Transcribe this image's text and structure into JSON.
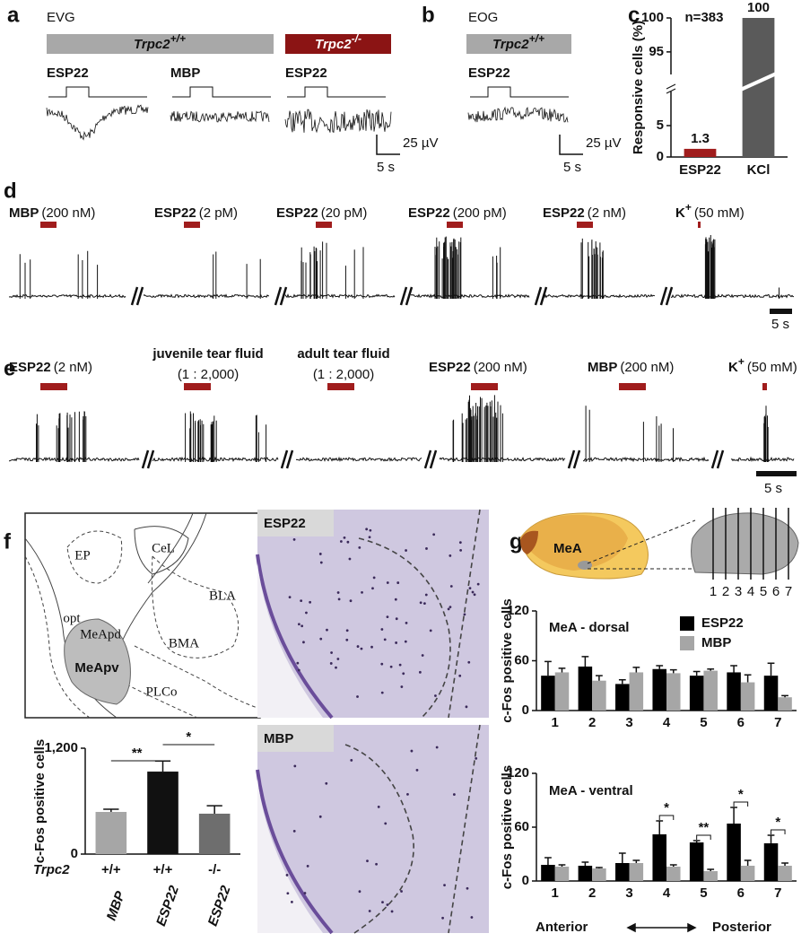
{
  "a": {
    "letter": "a",
    "method": "EVG",
    "groups": [
      {
        "gene": "Trpc2",
        "genotype": "+/+"
      },
      {
        "gene": "Trpc2",
        "genotype": "-/-"
      }
    ],
    "stimuli": [
      "ESP22",
      "MBP",
      "ESP22"
    ],
    "scale_y": "25 µV",
    "scale_x": "5 s"
  },
  "b": {
    "letter": "b",
    "method": "EOG",
    "groups": [
      {
        "gene": "Trpc2",
        "genotype": "+/+"
      }
    ],
    "stimuli": [
      "ESP22"
    ],
    "scale_y": "25 µV",
    "scale_x": "5 s"
  },
  "c": {
    "letter": "c"
  },
  "d": {
    "letter": "d",
    "stimuli": [
      {
        "name": "MBP",
        "conc": "(200 nM)"
      },
      {
        "name": "ESP22",
        "conc": "(2 pM)"
      },
      {
        "name": "ESP22",
        "conc": "(20 pM)"
      },
      {
        "name": "ESP22",
        "conc": "(200 pM)"
      },
      {
        "name": "ESP22",
        "conc": "(2 nM)"
      },
      {
        "name": "K",
        "sup": "+",
        "conc": "(50 mM)"
      }
    ],
    "scale_x": "5 s"
  },
  "e": {
    "letter": "e",
    "stimuli": [
      {
        "name": "ESP22",
        "conc": "(2 nM)"
      },
      {
        "name": "juvenile tear fluid",
        "conc": "(1 : 2,000)"
      },
      {
        "name": "adult tear fluid",
        "conc": "(1 : 2,000)"
      },
      {
        "name": "ESP22",
        "conc": "(200 nM)"
      },
      {
        "name": "MBP",
        "conc": "(200 nM)"
      },
      {
        "name": "K",
        "sup": "+",
        "conc": "(50 mM)"
      }
    ],
    "scale_x": "5 s"
  },
  "f": {
    "letter": "f",
    "atlas_labels": [
      "EP",
      "CeL",
      "BLA",
      "opt",
      "MeApd",
      "BMA",
      "MeApv",
      "PLCo"
    ],
    "images": [
      "ESP22",
      "MBP"
    ]
  },
  "g": {
    "letter": "g",
    "region": "MeA",
    "slices": [
      "1",
      "2",
      "3",
      "4",
      "5",
      "6",
      "7"
    ],
    "x_start": "Anterior",
    "x_end": "Posterior"
  },
  "chart_data": [
    {
      "type": "bar",
      "title": "n=383",
      "ylabel": "Responsive cells (%)",
      "categories": [
        "ESP22",
        "KCl"
      ],
      "values": [
        1.3,
        100
      ],
      "colors": [
        "#a01d1d",
        "#5a5a5a"
      ],
      "ylim": [
        0,
        100
      ],
      "axis_break": [
        9,
        93
      ],
      "yticks": [
        0,
        5,
        95,
        100
      ]
    },
    {
      "type": "bar",
      "ylabel": "c-Fos positive cells",
      "categories": [
        "MBP",
        "ESP22",
        "ESP22"
      ],
      "row_label": "Trpc2",
      "genotypes": [
        "+/+",
        "+/+",
        "-/-"
      ],
      "values": [
        478,
        935,
        458
      ],
      "errors": [
        30,
        120,
        90
      ],
      "colors": [
        "#a6a6a6",
        "#111111",
        "#6e6e6e"
      ],
      "ylim": [
        0,
        1200
      ],
      "yticks": [
        0,
        {
          "value": 1200,
          "label": "1,200"
        }
      ],
      "significance": [
        "**",
        "*"
      ]
    },
    {
      "type": "bar",
      "title": "MeA - dorsal",
      "ylabel": "c-Fos positive cells",
      "categories": [
        "1",
        "2",
        "3",
        "4",
        "5",
        "6",
        "7"
      ],
      "series": [
        {
          "name": "ESP22",
          "color": "#000000",
          "values": [
            42,
            53,
            32,
            50,
            42,
            46,
            42
          ],
          "errors": [
            17,
            12,
            5,
            4,
            5,
            8,
            15
          ]
        },
        {
          "name": "MBP",
          "color": "#a6a6a6",
          "values": [
            46,
            36,
            46,
            45,
            48,
            34,
            16
          ],
          "errors": [
            5,
            6,
            6,
            4,
            2,
            9,
            2
          ]
        }
      ],
      "ylim": [
        0,
        120
      ],
      "yticks": [
        0,
        60,
        120
      ],
      "legend": "upper right"
    },
    {
      "type": "bar",
      "title": "MeA - ventral",
      "ylabel": "c-Fos positive cells",
      "categories": [
        "1",
        "2",
        "3",
        "4",
        "5",
        "6",
        "7"
      ],
      "series": [
        {
          "name": "ESP22",
          "color": "#000000",
          "values": [
            18,
            17,
            20,
            52,
            43,
            64,
            42
          ],
          "errors": [
            8,
            4,
            11,
            15,
            2,
            18,
            9
          ]
        },
        {
          "name": "MBP",
          "color": "#a6a6a6",
          "values": [
            16,
            14,
            20,
            16,
            11,
            17,
            17
          ],
          "errors": [
            2,
            1,
            3,
            2,
            2,
            6,
            3
          ]
        }
      ],
      "ylim": [
        0,
        120
      ],
      "yticks": [
        0,
        60,
        120
      ],
      "significance": [
        null,
        null,
        null,
        "*",
        "**",
        "*",
        "*"
      ]
    }
  ]
}
